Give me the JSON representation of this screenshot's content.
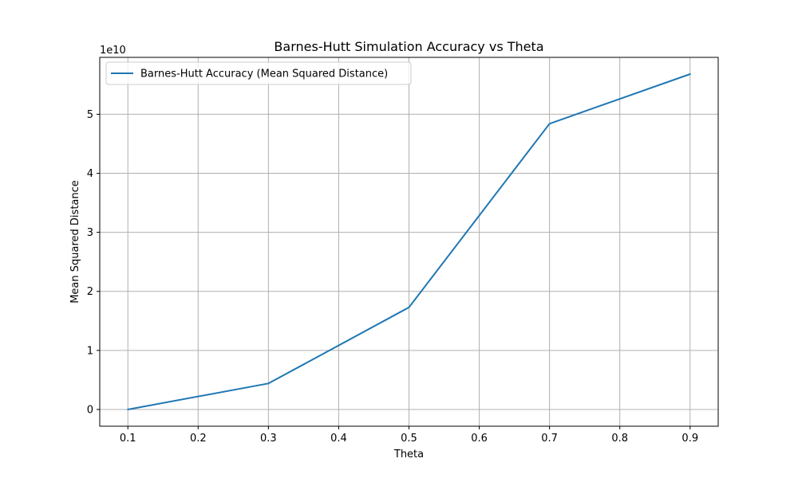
{
  "chart_data": {
    "type": "line",
    "title": "Barnes-Hutt Simulation Accuracy vs Theta",
    "xlabel": "Theta",
    "ylabel": "Mean Squared Distance",
    "y_offset_label": "1e10",
    "x": [
      0.1,
      0.3,
      0.5,
      0.7,
      0.9
    ],
    "series": [
      {
        "name": "Barnes-Hutt Accuracy (Mean Squared Distance)",
        "values": [
          0.0,
          0.44,
          1.73,
          4.84,
          5.68
        ],
        "color": "#1f77b4"
      }
    ],
    "x_ticks": [
      0.1,
      0.2,
      0.3,
      0.4,
      0.5,
      0.6,
      0.7,
      0.8,
      0.9
    ],
    "x_tick_labels": [
      "0.1",
      "0.2",
      "0.3",
      "0.4",
      "0.5",
      "0.6",
      "0.7",
      "0.8",
      "0.9"
    ],
    "y_ticks": [
      0,
      1,
      2,
      3,
      4,
      5
    ],
    "y_tick_labels": [
      "0",
      "1",
      "2",
      "3",
      "4",
      "5"
    ],
    "xlim": [
      0.06,
      0.94
    ],
    "ylim": [
      -0.284,
      5.964
    ],
    "grid": true,
    "legend_position": "upper-left"
  }
}
